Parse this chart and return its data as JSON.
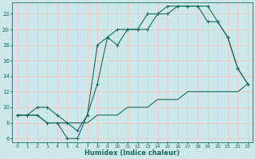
{
  "xlabel": "Humidex (Indice chaleur)",
  "bg_color": "#cde8ea",
  "grid_color": "#f0c8c8",
  "line_color": "#1a6b5a",
  "xlim": [
    -0.5,
    23.5
  ],
  "ylim": [
    5.5,
    23.5
  ],
  "yticks": [
    6,
    8,
    10,
    12,
    14,
    16,
    18,
    20,
    22
  ],
  "xtick_labels": [
    "0",
    "1",
    "2",
    "3",
    "4",
    "5",
    "6",
    "7",
    "8",
    "9",
    "10",
    "11",
    "12",
    "13",
    "14",
    "15",
    "16",
    "17",
    "18",
    "19",
    "20",
    "21",
    "22",
    "23"
  ],
  "xtick_pos": [
    0,
    1,
    2,
    3,
    4,
    5,
    6,
    7,
    8,
    9,
    10,
    11,
    12,
    13,
    14,
    15,
    16,
    17,
    18,
    19,
    20,
    21,
    22,
    23
  ],
  "line1_x": [
    0,
    1,
    2,
    3,
    4,
    5,
    6,
    7,
    8,
    9,
    10,
    11,
    12,
    13,
    14,
    15,
    16,
    17,
    18,
    19,
    20,
    21,
    22,
    23
  ],
  "line1_y": [
    9,
    9,
    9,
    8,
    8,
    6,
    6,
    9,
    18,
    19,
    20,
    20,
    20,
    22,
    22,
    23,
    23,
    23,
    23,
    23,
    21,
    19,
    15,
    13
  ],
  "line2_x": [
    0,
    1,
    2,
    3,
    4,
    5,
    6,
    7,
    8,
    9,
    10,
    11,
    12,
    13,
    14,
    15,
    16,
    17,
    18,
    19,
    20,
    21,
    22,
    23
  ],
  "line2_y": [
    9,
    9,
    10,
    10,
    9,
    8,
    7,
    9,
    13,
    19,
    18,
    20,
    20,
    20,
    22,
    22,
    23,
    23,
    23,
    21,
    21,
    19,
    15,
    13
  ],
  "line3_x": [
    0,
    1,
    2,
    3,
    4,
    5,
    6,
    7,
    8,
    9,
    10,
    11,
    12,
    13,
    14,
    15,
    16,
    17,
    18,
    19,
    20,
    21,
    22,
    23
  ],
  "line3_y": [
    9,
    9,
    9,
    8,
    8,
    8,
    8,
    8,
    9,
    9,
    9,
    10,
    10,
    10,
    11,
    11,
    11,
    12,
    12,
    12,
    12,
    12,
    12,
    13
  ],
  "marker": "+",
  "markersize": 3,
  "linewidth": 0.8,
  "xlabel_fontsize": 6,
  "ytick_fontsize": 5,
  "xtick_fontsize": 4.5
}
